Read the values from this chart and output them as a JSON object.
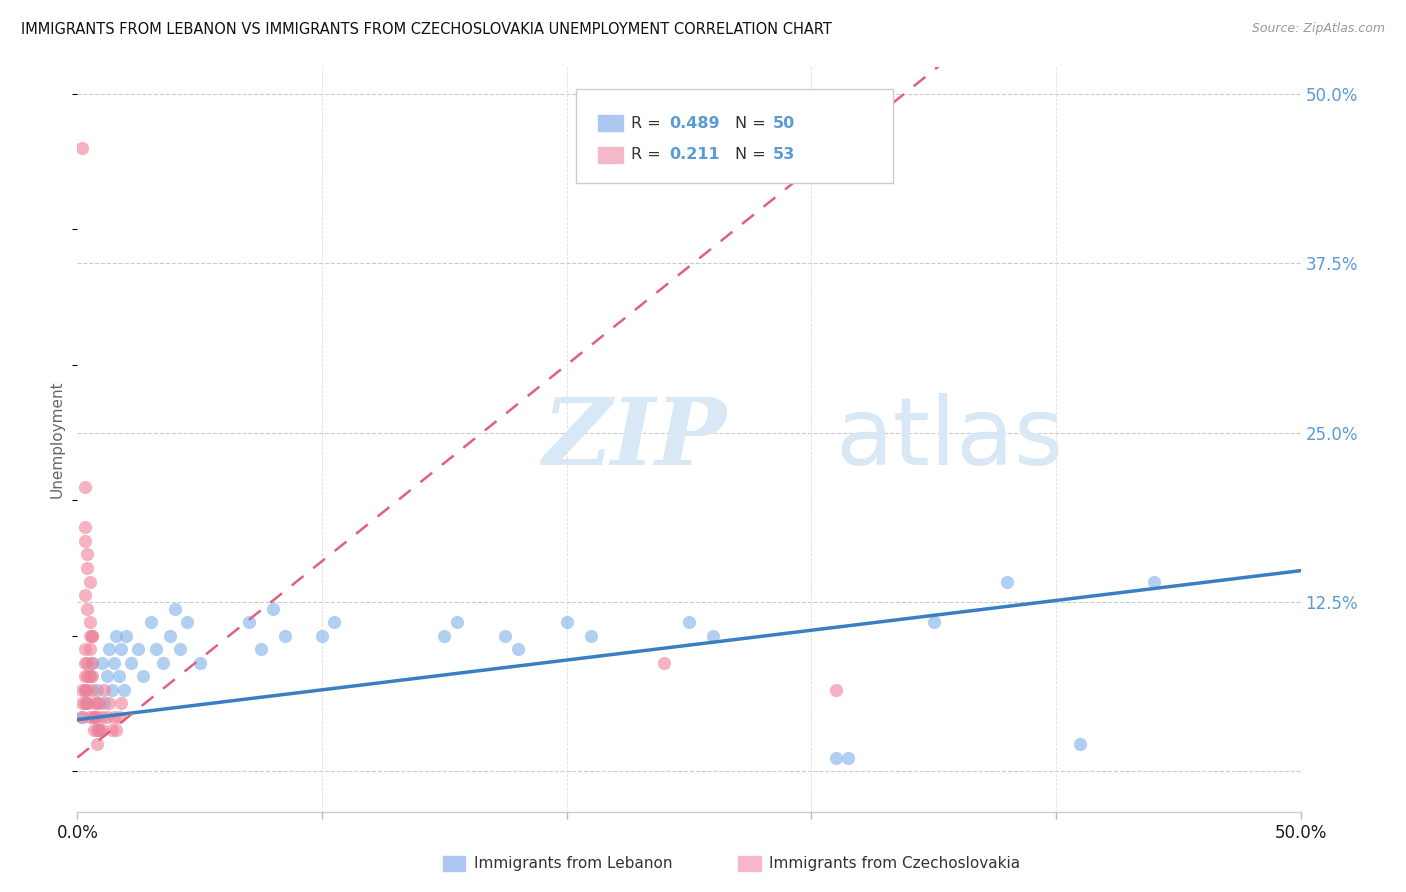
{
  "title": "IMMIGRANTS FROM LEBANON VS IMMIGRANTS FROM CZECHOSLOVAKIA UNEMPLOYMENT CORRELATION CHART",
  "source": "Source: ZipAtlas.com",
  "ylabel": "Unemployment",
  "xlim": [
    0.0,
    0.5
  ],
  "ylim": [
    -0.03,
    0.52
  ],
  "ytick_vals": [
    0.0,
    0.125,
    0.25,
    0.375,
    0.5
  ],
  "ytick_labels_right": [
    "",
    "12.5%",
    "25.0%",
    "37.5%",
    "50.0%"
  ],
  "xtick_vals": [
    0.0,
    0.1,
    0.2,
    0.3,
    0.4,
    0.5
  ],
  "r_lebanon": 0.489,
  "n_lebanon": 50,
  "r_czech": 0.211,
  "n_czech": 53,
  "color_lebanon": "#7db0e8",
  "color_czech": "#f08098",
  "color_trendline_lebanon": "#3a7fc1",
  "color_trendline_czech": "#e06080",
  "watermark_zip": "ZIP",
  "watermark_atlas": "atlas",
  "watermark_color": "#d8e8f5",
  "lebanon_scatter": [
    [
      0.002,
      0.04
    ],
    [
      0.003,
      0.06
    ],
    [
      0.004,
      0.05
    ],
    [
      0.005,
      0.07
    ],
    [
      0.006,
      0.08
    ],
    [
      0.007,
      0.04
    ],
    [
      0.008,
      0.06
    ],
    [
      0.009,
      0.03
    ],
    [
      0.01,
      0.08
    ],
    [
      0.011,
      0.05
    ],
    [
      0.012,
      0.07
    ],
    [
      0.013,
      0.09
    ],
    [
      0.014,
      0.06
    ],
    [
      0.015,
      0.08
    ],
    [
      0.016,
      0.1
    ],
    [
      0.017,
      0.07
    ],
    [
      0.018,
      0.09
    ],
    [
      0.019,
      0.06
    ],
    [
      0.02,
      0.1
    ],
    [
      0.022,
      0.08
    ],
    [
      0.025,
      0.09
    ],
    [
      0.027,
      0.07
    ],
    [
      0.03,
      0.11
    ],
    [
      0.032,
      0.09
    ],
    [
      0.035,
      0.08
    ],
    [
      0.038,
      0.1
    ],
    [
      0.04,
      0.12
    ],
    [
      0.042,
      0.09
    ],
    [
      0.045,
      0.11
    ],
    [
      0.05,
      0.08
    ],
    [
      0.07,
      0.11
    ],
    [
      0.075,
      0.09
    ],
    [
      0.08,
      0.12
    ],
    [
      0.085,
      0.1
    ],
    [
      0.1,
      0.1
    ],
    [
      0.105,
      0.11
    ],
    [
      0.15,
      0.1
    ],
    [
      0.155,
      0.11
    ],
    [
      0.175,
      0.1
    ],
    [
      0.18,
      0.09
    ],
    [
      0.2,
      0.11
    ],
    [
      0.21,
      0.1
    ],
    [
      0.25,
      0.11
    ],
    [
      0.26,
      0.1
    ],
    [
      0.31,
      0.01
    ],
    [
      0.315,
      0.01
    ],
    [
      0.35,
      0.11
    ],
    [
      0.38,
      0.14
    ],
    [
      0.41,
      0.02
    ],
    [
      0.44,
      0.14
    ]
  ],
  "czech_scatter": [
    [
      0.002,
      0.04
    ],
    [
      0.002,
      0.06
    ],
    [
      0.002,
      0.05
    ],
    [
      0.003,
      0.07
    ],
    [
      0.003,
      0.08
    ],
    [
      0.003,
      0.05
    ],
    [
      0.003,
      0.06
    ],
    [
      0.003,
      0.09
    ],
    [
      0.004,
      0.07
    ],
    [
      0.004,
      0.05
    ],
    [
      0.004,
      0.08
    ],
    [
      0.004,
      0.06
    ],
    [
      0.005,
      0.07
    ],
    [
      0.005,
      0.1
    ],
    [
      0.005,
      0.09
    ],
    [
      0.005,
      0.04
    ],
    [
      0.006,
      0.08
    ],
    [
      0.006,
      0.07
    ],
    [
      0.006,
      0.06
    ],
    [
      0.006,
      0.1
    ],
    [
      0.007,
      0.05
    ],
    [
      0.007,
      0.04
    ],
    [
      0.007,
      0.03
    ],
    [
      0.007,
      0.04
    ],
    [
      0.008,
      0.05
    ],
    [
      0.008,
      0.03
    ],
    [
      0.008,
      0.02
    ],
    [
      0.008,
      0.04
    ],
    [
      0.009,
      0.03
    ],
    [
      0.009,
      0.05
    ],
    [
      0.01,
      0.04
    ],
    [
      0.01,
      0.03
    ],
    [
      0.011,
      0.06
    ],
    [
      0.012,
      0.04
    ],
    [
      0.013,
      0.05
    ],
    [
      0.014,
      0.03
    ],
    [
      0.015,
      0.04
    ],
    [
      0.016,
      0.03
    ],
    [
      0.017,
      0.04
    ],
    [
      0.018,
      0.05
    ],
    [
      0.003,
      0.21
    ],
    [
      0.003,
      0.17
    ],
    [
      0.003,
      0.18
    ],
    [
      0.004,
      0.16
    ],
    [
      0.004,
      0.15
    ],
    [
      0.005,
      0.14
    ],
    [
      0.002,
      0.46
    ],
    [
      0.003,
      0.13
    ],
    [
      0.004,
      0.12
    ],
    [
      0.005,
      0.11
    ],
    [
      0.006,
      0.1
    ],
    [
      0.24,
      0.08
    ],
    [
      0.31,
      0.06
    ]
  ]
}
